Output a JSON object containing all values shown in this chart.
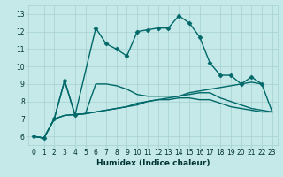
{
  "xlabel": "Humidex (Indice chaleur)",
  "xlim": [
    -0.5,
    23.5
  ],
  "ylim": [
    5.5,
    13.5
  ],
  "yticks": [
    6,
    7,
    8,
    9,
    10,
    11,
    12,
    13
  ],
  "xticks": [
    0,
    1,
    2,
    3,
    4,
    5,
    6,
    7,
    8,
    9,
    10,
    11,
    12,
    13,
    14,
    15,
    16,
    17,
    18,
    19,
    20,
    21,
    22,
    23
  ],
  "bg_color": "#c5e8e8",
  "grid_color": "#aad4d4",
  "line_color": "#006868",
  "line_width": 1.0,
  "marker": "D",
  "marker_size": 2.5,
  "series": [
    {
      "x": [
        0,
        1,
        2,
        3,
        4,
        6,
        7,
        8,
        9,
        10,
        11,
        12,
        13,
        14,
        15,
        16,
        17,
        18,
        19,
        20,
        21,
        22
      ],
      "y": [
        6.0,
        5.9,
        7.0,
        9.2,
        7.2,
        12.2,
        11.3,
        11.0,
        10.6,
        12.0,
        12.1,
        12.2,
        12.2,
        12.9,
        12.5,
        11.7,
        10.2,
        9.5,
        9.5,
        9.0,
        9.4,
        9.0
      ],
      "has_markers": true
    },
    {
      "x": [
        0,
        1,
        2,
        3,
        4,
        5,
        6,
        7,
        8,
        9,
        10,
        11,
        12,
        13,
        14,
        15,
        16,
        17,
        18,
        19,
        20,
        21,
        22,
        23
      ],
      "y": [
        6.0,
        5.9,
        7.0,
        9.2,
        7.25,
        7.3,
        9.0,
        9.0,
        8.9,
        8.7,
        8.4,
        8.3,
        8.3,
        8.3,
        8.3,
        8.4,
        8.5,
        8.5,
        8.2,
        8.0,
        7.8,
        7.6,
        7.5,
        7.4
      ],
      "has_markers": false
    },
    {
      "x": [
        0,
        1,
        2,
        3,
        4,
        5,
        6,
        7,
        8,
        9,
        10,
        11,
        12,
        13,
        14,
        15,
        16,
        17,
        18,
        19,
        20,
        21,
        22,
        23
      ],
      "y": [
        6.0,
        5.9,
        7.0,
        7.2,
        7.25,
        7.3,
        7.4,
        7.5,
        7.6,
        7.7,
        7.8,
        8.0,
        8.1,
        8.2,
        8.3,
        8.5,
        8.6,
        8.7,
        8.8,
        8.9,
        9.0,
        9.1,
        9.0,
        7.4
      ],
      "has_markers": false
    },
    {
      "x": [
        0,
        1,
        2,
        3,
        4,
        5,
        6,
        7,
        8,
        9,
        10,
        11,
        12,
        13,
        14,
        15,
        16,
        17,
        18,
        19,
        20,
        21,
        22,
        23
      ],
      "y": [
        6.0,
        5.9,
        7.0,
        7.2,
        7.25,
        7.3,
        7.4,
        7.5,
        7.6,
        7.7,
        7.9,
        8.0,
        8.1,
        8.1,
        8.2,
        8.2,
        8.1,
        8.1,
        7.9,
        7.7,
        7.6,
        7.5,
        7.4,
        7.4
      ],
      "has_markers": false
    }
  ]
}
